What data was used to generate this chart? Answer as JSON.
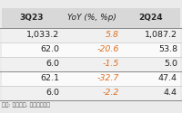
{
  "header": [
    "3Q23",
    "YoY (%, %p)",
    "2Q24"
  ],
  "rows": [
    [
      "1,033.2",
      "5.8",
      "1,087.2"
    ],
    [
      "62.0",
      "-20.6",
      "53.8"
    ],
    [
      "6.0",
      "-1.5",
      "5.0"
    ],
    [
      "62.1",
      "-32.7",
      "47.4"
    ],
    [
      "6.0",
      "-2.2",
      "4.4"
    ]
  ],
  "header_bg": "#d8d8d8",
  "row_bg_odd": "#f0f0f0",
  "row_bg_even": "#fafafa",
  "text_color_normal": "#222222",
  "text_color_yoy": "#e07020",
  "footer_text": "자료: 회사자료, 신한투자증권",
  "header_fontsize": 6.5,
  "cell_fontsize": 6.8,
  "footer_fontsize": 4.5
}
